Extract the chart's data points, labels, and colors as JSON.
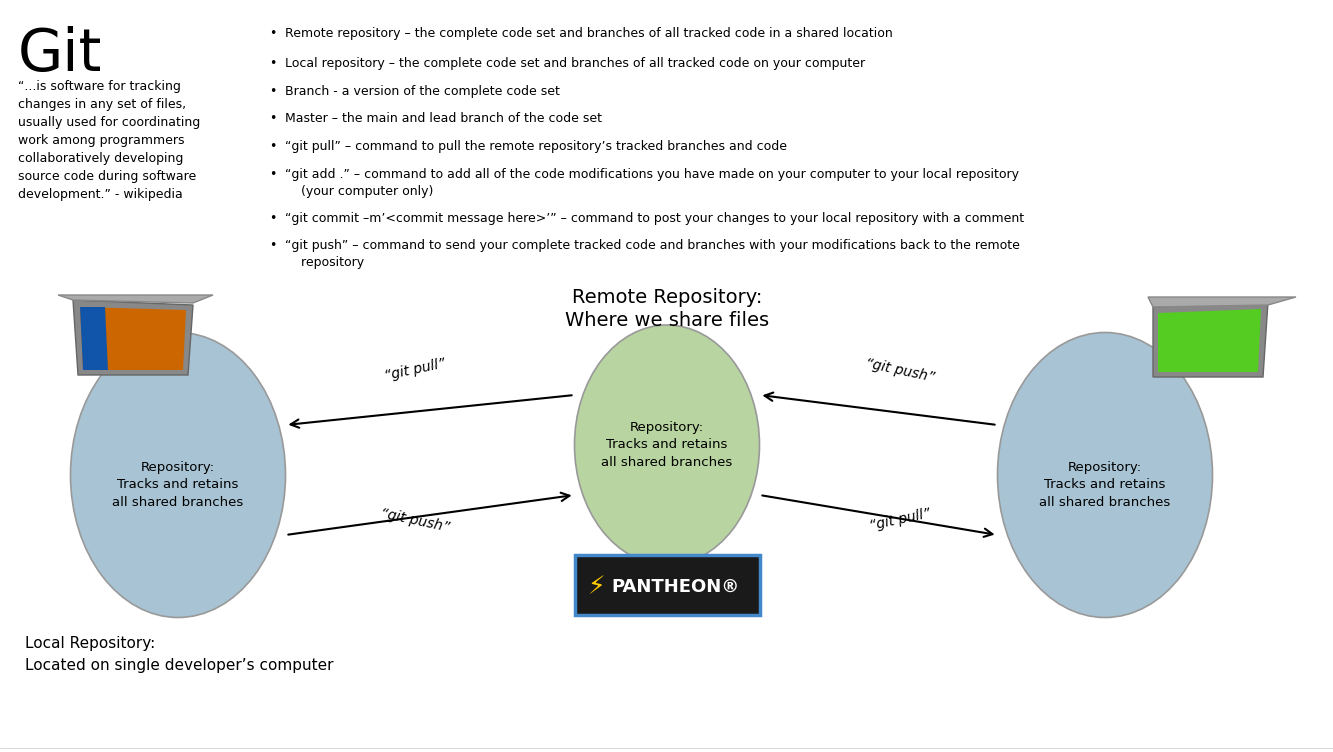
{
  "title": "Git",
  "git_quote": "“...is software for tracking\nchanges in any set of files,\nusually used for coordinating\nwork among programmers\ncollaboratively developing\nsource code during software\ndevelopment.” - wikipedia",
  "remote_repo_title": "Remote Repository:\nWhere we share files",
  "center_ellipse_color": "#b8d4a0",
  "left_ellipse_color": "#a8c4d4",
  "right_ellipse_color": "#a8c4d4",
  "ellipse_label": "Repository:\nTracks and retains\nall shared branches",
  "local_repo_label": "Local Repository:\nLocated on single developer’s computer",
  "background_color": "#ffffff",
  "pantheon_bg": "#1a1a1a",
  "pantheon_border": "#4488cc"
}
